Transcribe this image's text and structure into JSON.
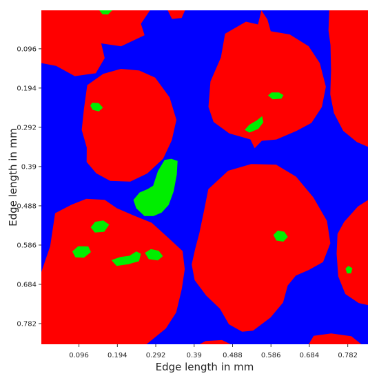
{
  "chart_data": {
    "type": "heatmap",
    "title": "",
    "xlabel": "Edge length in mm",
    "ylabel": "Edge length in mm",
    "xlim": [
      0.0,
      0.8336
    ],
    "ylim": [
      0.0,
      0.8336
    ],
    "y_inverted": true,
    "x_ticks": [
      "0.096",
      "0.194",
      "0.292",
      "0.39",
      "0.488",
      "0.586",
      "0.684",
      "0.782"
    ],
    "y_ticks": [
      "0.096",
      "0.194",
      "0.292",
      "0.39",
      "0.488",
      "0.586",
      "0.684",
      "0.782"
    ],
    "grid": false,
    "legend": "none",
    "colors": {
      "background": "#0000ff",
      "grain": "#ff0000",
      "inclusion": "#00ee00"
    },
    "regions": [
      {
        "phase": "grain",
        "points": [
          [
            0.0,
            0.0
          ],
          [
            0.2773,
            0.0
          ],
          [
            0.2542,
            0.0336
          ],
          [
            0.2634,
            0.0621
          ],
          [
            0.2034,
            0.0898
          ],
          [
            0.1528,
            0.0825
          ],
          [
            0.1617,
            0.1192
          ],
          [
            0.1389,
            0.1571
          ],
          [
            0.0855,
            0.1643
          ],
          [
            0.0379,
            0.1389
          ],
          [
            0.0,
            0.1317
          ]
        ]
      },
      {
        "phase": "grain",
        "points": [
          [
            0.4583,
            0.1175
          ],
          [
            0.4689,
            0.0584
          ],
          [
            0.5221,
            0.0283
          ],
          [
            0.553,
            0.0353
          ],
          [
            0.5617,
            0.0
          ],
          [
            0.577,
            0.0228
          ],
          [
            0.5854,
            0.0523
          ],
          [
            0.6339,
            0.0601
          ],
          [
            0.6821,
            0.0896
          ],
          [
            0.7106,
            0.1319
          ],
          [
            0.7261,
            0.1907
          ],
          [
            0.7159,
            0.2413
          ],
          [
            0.6894,
            0.281
          ],
          [
            0.6513,
            0.3009
          ],
          [
            0.5997,
            0.3224
          ],
          [
            0.5627,
            0.3257
          ],
          [
            0.5443,
            0.3441
          ],
          [
            0.5336,
            0.3222
          ],
          [
            0.4796,
            0.3072
          ],
          [
            0.4394,
            0.2786
          ],
          [
            0.4264,
            0.2411
          ],
          [
            0.4316,
            0.1777
          ]
        ]
      },
      {
        "phase": "grain",
        "points": [
          [
            0.1172,
            0.1866
          ],
          [
            0.158,
            0.1586
          ],
          [
            0.2032,
            0.1461
          ],
          [
            0.2498,
            0.1502
          ],
          [
            0.2906,
            0.1679
          ],
          [
            0.3273,
            0.2172
          ],
          [
            0.3447,
            0.2732
          ],
          [
            0.3329,
            0.3244
          ],
          [
            0.3109,
            0.3703
          ],
          [
            0.2708,
            0.407
          ],
          [
            0.2271,
            0.4276
          ],
          [
            0.1759,
            0.4257
          ],
          [
            0.1401,
            0.4069
          ],
          [
            0.1156,
            0.3785
          ],
          [
            0.1159,
            0.3423
          ],
          [
            0.1031,
            0.2987
          ],
          [
            0.1087,
            0.2464
          ]
        ]
      },
      {
        "phase": "grain",
        "points": [
          [
            0.7347,
            0.0
          ],
          [
            0.8336,
            0.0
          ],
          [
            0.8336,
            0.3406
          ],
          [
            0.8054,
            0.3289
          ],
          [
            0.7705,
            0.301
          ],
          [
            0.7467,
            0.2565
          ],
          [
            0.7374,
            0.2097
          ],
          [
            0.7393,
            0.1503
          ],
          [
            0.738,
            0.0868
          ],
          [
            0.7329,
            0.0506
          ]
        ]
      },
      {
        "phase": "grain",
        "points": [
          [
            0.4262,
            0.4463
          ],
          [
            0.4767,
            0.4004
          ],
          [
            0.5357,
            0.3837
          ],
          [
            0.5992,
            0.3852
          ],
          [
            0.6502,
            0.4153
          ],
          [
            0.6944,
            0.4672
          ],
          [
            0.7289,
            0.5257
          ],
          [
            0.7375,
            0.5813
          ],
          [
            0.719,
            0.6284
          ],
          [
            0.6826,
            0.6482
          ],
          [
            0.6494,
            0.6622
          ],
          [
            0.6288,
            0.6872
          ],
          [
            0.617,
            0.7295
          ],
          [
            0.5849,
            0.7668
          ],
          [
            0.5402,
            0.7998
          ],
          [
            0.5124,
            0.8024
          ],
          [
            0.4787,
            0.7838
          ],
          [
            0.4556,
            0.7447
          ],
          [
            0.4207,
            0.7119
          ],
          [
            0.3913,
            0.6735
          ],
          [
            0.3838,
            0.6344
          ],
          [
            0.3924,
            0.5964
          ],
          [
            0.4034,
            0.5553
          ],
          [
            0.4163,
            0.495
          ]
        ]
      },
      {
        "phase": "grain",
        "points": [
          [
            0.0352,
            0.5064
          ],
          [
            0.0772,
            0.4851
          ],
          [
            0.1148,
            0.4706
          ],
          [
            0.1618,
            0.473
          ],
          [
            0.1926,
            0.494
          ],
          [
            0.2347,
            0.5116
          ],
          [
            0.2815,
            0.5302
          ],
          [
            0.3228,
            0.5668
          ],
          [
            0.3605,
            0.6009
          ],
          [
            0.366,
            0.6463
          ],
          [
            0.3585,
            0.6958
          ],
          [
            0.3441,
            0.7542
          ],
          [
            0.3178,
            0.7942
          ],
          [
            0.2684,
            0.8336
          ],
          [
            0.0,
            0.8336
          ],
          [
            0.0,
            0.6533
          ],
          [
            0.0225,
            0.5888
          ]
        ]
      },
      {
        "phase": "grain",
        "points": [
          [
            0.7728,
            0.5281
          ],
          [
            0.8079,
            0.4896
          ],
          [
            0.8336,
            0.4735
          ],
          [
            0.8336,
            0.7358
          ],
          [
            0.8099,
            0.7306
          ],
          [
            0.7757,
            0.7081
          ],
          [
            0.7577,
            0.6638
          ],
          [
            0.7535,
            0.6074
          ],
          [
            0.7558,
            0.558
          ]
        ]
      },
      {
        "phase": "grain",
        "points": [
          [
            0.0553,
            0.8336
          ],
          [
            0.0688,
            0.8195
          ],
          [
            0.1026,
            0.8177
          ],
          [
            0.1361,
            0.8336
          ]
        ]
      },
      {
        "phase": "grain",
        "points": [
          [
            0.6826,
            0.8336
          ],
          [
            0.6951,
            0.8127
          ],
          [
            0.7399,
            0.8067
          ],
          [
            0.7911,
            0.8135
          ],
          [
            0.8168,
            0.8336
          ]
        ]
      },
      {
        "phase": "grain",
        "points": [
          [
            0.4038,
            0.8336
          ],
          [
            0.4195,
            0.8255
          ],
          [
            0.4611,
            0.8231
          ],
          [
            0.4831,
            0.8336
          ]
        ]
      },
      {
        "phase": "grain",
        "points": [
          [
            0.3225,
            0.0
          ],
          [
            0.3667,
            0.0
          ],
          [
            0.3581,
            0.0191
          ],
          [
            0.3333,
            0.0214
          ]
        ]
      },
      {
        "phase": "inclusion",
        "points": [
          [
            0.2853,
            0.438
          ],
          [
            0.2975,
            0.4011
          ],
          [
            0.3146,
            0.3735
          ],
          [
            0.332,
            0.3706
          ],
          [
            0.3476,
            0.376
          ],
          [
            0.3457,
            0.4097
          ],
          [
            0.3376,
            0.452
          ],
          [
            0.325,
            0.4858
          ],
          [
            0.3071,
            0.5048
          ],
          [
            0.2859,
            0.5138
          ],
          [
            0.2631,
            0.5134
          ],
          [
            0.2422,
            0.4942
          ],
          [
            0.2349,
            0.4734
          ],
          [
            0.2506,
            0.4548
          ],
          [
            0.2712,
            0.4462
          ]
        ]
      },
      {
        "phase": "inclusion",
        "points": [
          [
            0.1249,
            0.2379
          ],
          [
            0.1297,
            0.2309
          ],
          [
            0.1466,
            0.2315
          ],
          [
            0.1572,
            0.2431
          ],
          [
            0.1468,
            0.2521
          ],
          [
            0.1306,
            0.2483
          ]
        ]
      },
      {
        "phase": "inclusion",
        "points": [
          [
            0.5785,
            0.2124
          ],
          [
            0.5877,
            0.2049
          ],
          [
            0.6063,
            0.2051
          ],
          [
            0.618,
            0.2116
          ],
          [
            0.6125,
            0.2204
          ],
          [
            0.5903,
            0.2222
          ]
        ]
      },
      {
        "phase": "inclusion",
        "points": [
          [
            0.519,
            0.2983
          ],
          [
            0.5305,
            0.2858
          ],
          [
            0.5501,
            0.2745
          ],
          [
            0.5634,
            0.2644
          ],
          [
            0.5666,
            0.2794
          ],
          [
            0.5538,
            0.2962
          ],
          [
            0.531,
            0.3052
          ]
        ]
      },
      {
        "phase": "inclusion",
        "points": [
          [
            0.1259,
            0.5418
          ],
          [
            0.1373,
            0.5279
          ],
          [
            0.1582,
            0.5248
          ],
          [
            0.173,
            0.5348
          ],
          [
            0.1606,
            0.5527
          ],
          [
            0.1367,
            0.5547
          ]
        ]
      },
      {
        "phase": "inclusion",
        "points": [
          [
            0.079,
            0.6018
          ],
          [
            0.0941,
            0.5889
          ],
          [
            0.1198,
            0.5894
          ],
          [
            0.1267,
            0.6033
          ],
          [
            0.1089,
            0.6175
          ],
          [
            0.0869,
            0.6167
          ]
        ]
      },
      {
        "phase": "inclusion",
        "points": [
          [
            0.1788,
            0.6236
          ],
          [
            0.2017,
            0.6159
          ],
          [
            0.2247,
            0.6128
          ],
          [
            0.2425,
            0.6018
          ],
          [
            0.2542,
            0.6078
          ],
          [
            0.2492,
            0.6264
          ],
          [
            0.2222,
            0.6337
          ],
          [
            0.192,
            0.6381
          ]
        ]
      },
      {
        "phase": "inclusion",
        "points": [
          [
            0.2643,
            0.6052
          ],
          [
            0.2796,
            0.5959
          ],
          [
            0.2996,
            0.6002
          ],
          [
            0.3102,
            0.6136
          ],
          [
            0.2973,
            0.6245
          ],
          [
            0.2741,
            0.6212
          ]
        ]
      },
      {
        "phase": "inclusion",
        "points": [
          [
            0.5921,
            0.5606
          ],
          [
            0.6034,
            0.5499
          ],
          [
            0.6201,
            0.5525
          ],
          [
            0.6291,
            0.5657
          ],
          [
            0.6179,
            0.5773
          ],
          [
            0.6001,
            0.575
          ]
        ]
      },
      {
        "phase": "inclusion",
        "points": [
          [
            0.7761,
            0.6447
          ],
          [
            0.7834,
            0.6379
          ],
          [
            0.7938,
            0.6436
          ],
          [
            0.7906,
            0.6566
          ],
          [
            0.7804,
            0.6567
          ]
        ]
      },
      {
        "phase": "inclusion",
        "points": [
          [
            0.1479,
            0.0
          ],
          [
            0.181,
            0.0
          ],
          [
            0.1701,
            0.0103
          ],
          [
            0.1558,
            0.0097
          ]
        ]
      }
    ]
  }
}
